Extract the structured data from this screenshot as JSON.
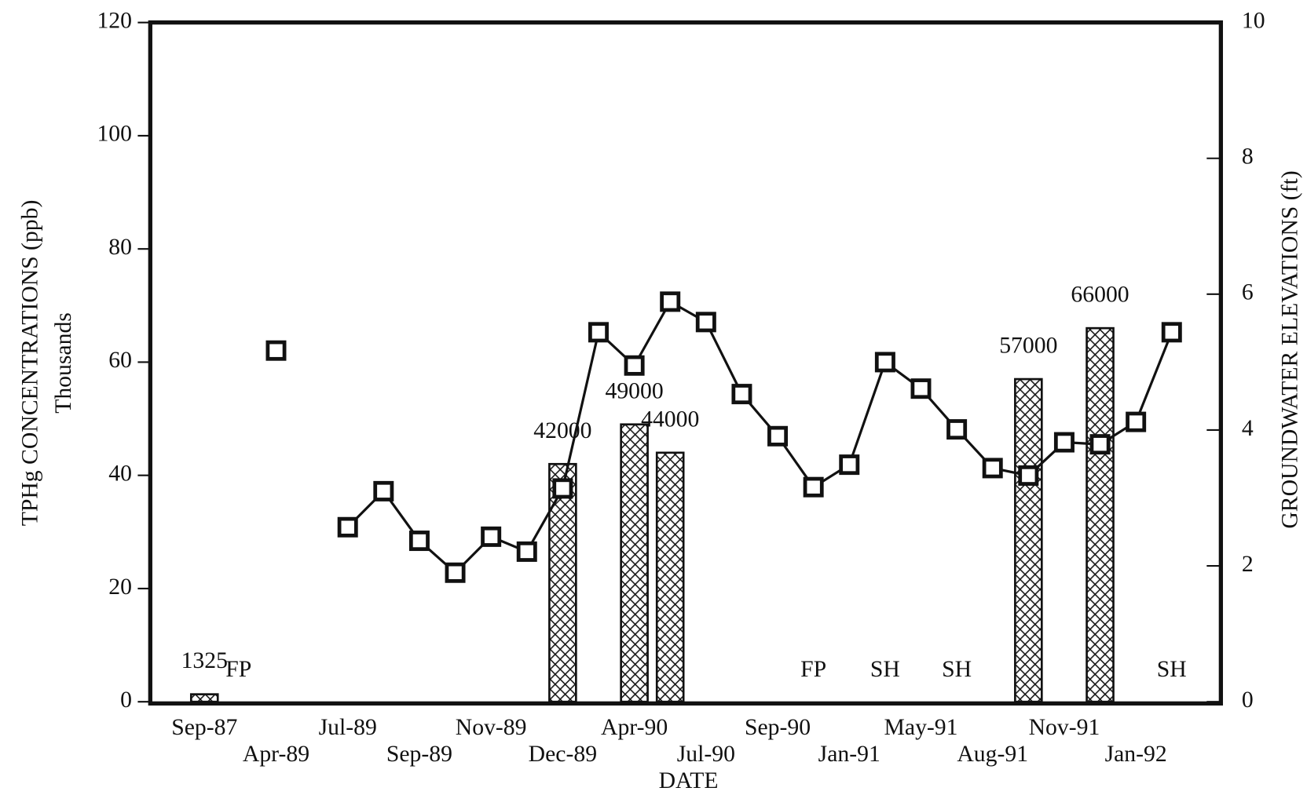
{
  "chart_data": {
    "type": "bar+line",
    "x_label": "DATE",
    "y_label": "TPHg CONCENTRATIONS (ppb)",
    "y_sublabel": "Thousands",
    "y2_label": "GROUNDWATER ELEVATIONS (ft)",
    "categories": [
      "Sep-87",
      null,
      "Apr-89",
      null,
      "Jul-89",
      null,
      "Sep-89",
      null,
      "Nov-89",
      null,
      "Dec-89",
      null,
      "Apr-90",
      null,
      "Jul-90",
      null,
      "Sep-90",
      null,
      "Jan-91",
      null,
      "May-91",
      null,
      "Aug-91",
      null,
      "Nov-91",
      null,
      "Jan-92",
      null
    ],
    "annotations": [
      null,
      "FP",
      null,
      null,
      null,
      null,
      null,
      null,
      null,
      null,
      null,
      null,
      null,
      null,
      null,
      null,
      null,
      "FP",
      null,
      "SH",
      null,
      "SH",
      null,
      null,
      null,
      null,
      null,
      "SH"
    ],
    "series": [
      {
        "name": "TPHg",
        "type": "bar",
        "axis": "y",
        "color": "#111111",
        "values": [
          1.325,
          null,
          null,
          null,
          null,
          null,
          null,
          null,
          null,
          null,
          42,
          null,
          49,
          44,
          null,
          null,
          null,
          null,
          null,
          null,
          null,
          null,
          null,
          57,
          null,
          66,
          null,
          null
        ],
        "value_labels": [
          "1325",
          null,
          null,
          null,
          null,
          null,
          null,
          null,
          null,
          null,
          "42000",
          null,
          "49000",
          "44000",
          null,
          null,
          null,
          null,
          null,
          null,
          null,
          null,
          null,
          "57000",
          null,
          "66000",
          null,
          null
        ]
      },
      {
        "name": "Groundwater elevation",
        "type": "line",
        "axis": "y2",
        "color": "#111111",
        "values": [
          null,
          null,
          5.17,
          null,
          2.57,
          3.1,
          2.37,
          1.9,
          2.43,
          2.21,
          3.14,
          5.44,
          4.95,
          5.89,
          5.59,
          4.53,
          3.91,
          3.16,
          3.49,
          5.0,
          4.61,
          4.01,
          3.44,
          3.33,
          3.82,
          3.79,
          4.12,
          5.44
        ]
      }
    ],
    "ylim": [
      0,
      120
    ],
    "yticks": [
      0,
      20,
      40,
      60,
      80,
      100,
      120
    ],
    "y2lim": [
      0,
      10
    ],
    "y2ticks": [
      0,
      2,
      4,
      6,
      8,
      10
    ]
  }
}
